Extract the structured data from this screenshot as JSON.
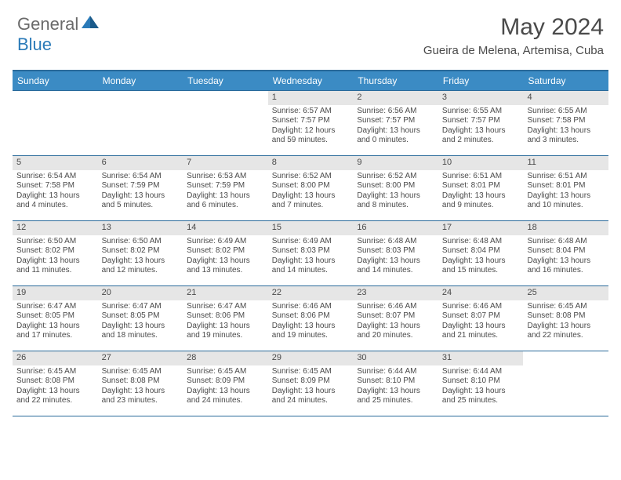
{
  "logo": {
    "general": "General",
    "blue": "Blue"
  },
  "title": "May 2024",
  "location": "Gueira de Melena, Artemisa, Cuba",
  "weekdays": [
    "Sunday",
    "Monday",
    "Tuesday",
    "Wednesday",
    "Thursday",
    "Friday",
    "Saturday"
  ],
  "colors": {
    "header_bar": "#3b8bc4",
    "header_border": "#2a6a9a",
    "daynum_bg": "#e6e6e6",
    "text": "#4a4a4a",
    "logo_gray": "#6a6a6a",
    "logo_blue": "#2a7ab8",
    "background": "#ffffff"
  },
  "weeks": [
    [
      {
        "n": "",
        "sr": "",
        "ss": "",
        "dl1": "",
        "dl2": ""
      },
      {
        "n": "",
        "sr": "",
        "ss": "",
        "dl1": "",
        "dl2": ""
      },
      {
        "n": "",
        "sr": "",
        "ss": "",
        "dl1": "",
        "dl2": ""
      },
      {
        "n": "1",
        "sr": "Sunrise: 6:57 AM",
        "ss": "Sunset: 7:57 PM",
        "dl1": "Daylight: 12 hours",
        "dl2": "and 59 minutes."
      },
      {
        "n": "2",
        "sr": "Sunrise: 6:56 AM",
        "ss": "Sunset: 7:57 PM",
        "dl1": "Daylight: 13 hours",
        "dl2": "and 0 minutes."
      },
      {
        "n": "3",
        "sr": "Sunrise: 6:55 AM",
        "ss": "Sunset: 7:57 PM",
        "dl1": "Daylight: 13 hours",
        "dl2": "and 2 minutes."
      },
      {
        "n": "4",
        "sr": "Sunrise: 6:55 AM",
        "ss": "Sunset: 7:58 PM",
        "dl1": "Daylight: 13 hours",
        "dl2": "and 3 minutes."
      }
    ],
    [
      {
        "n": "5",
        "sr": "Sunrise: 6:54 AM",
        "ss": "Sunset: 7:58 PM",
        "dl1": "Daylight: 13 hours",
        "dl2": "and 4 minutes."
      },
      {
        "n": "6",
        "sr": "Sunrise: 6:54 AM",
        "ss": "Sunset: 7:59 PM",
        "dl1": "Daylight: 13 hours",
        "dl2": "and 5 minutes."
      },
      {
        "n": "7",
        "sr": "Sunrise: 6:53 AM",
        "ss": "Sunset: 7:59 PM",
        "dl1": "Daylight: 13 hours",
        "dl2": "and 6 minutes."
      },
      {
        "n": "8",
        "sr": "Sunrise: 6:52 AM",
        "ss": "Sunset: 8:00 PM",
        "dl1": "Daylight: 13 hours",
        "dl2": "and 7 minutes."
      },
      {
        "n": "9",
        "sr": "Sunrise: 6:52 AM",
        "ss": "Sunset: 8:00 PM",
        "dl1": "Daylight: 13 hours",
        "dl2": "and 8 minutes."
      },
      {
        "n": "10",
        "sr": "Sunrise: 6:51 AM",
        "ss": "Sunset: 8:01 PM",
        "dl1": "Daylight: 13 hours",
        "dl2": "and 9 minutes."
      },
      {
        "n": "11",
        "sr": "Sunrise: 6:51 AM",
        "ss": "Sunset: 8:01 PM",
        "dl1": "Daylight: 13 hours",
        "dl2": "and 10 minutes."
      }
    ],
    [
      {
        "n": "12",
        "sr": "Sunrise: 6:50 AM",
        "ss": "Sunset: 8:02 PM",
        "dl1": "Daylight: 13 hours",
        "dl2": "and 11 minutes."
      },
      {
        "n": "13",
        "sr": "Sunrise: 6:50 AM",
        "ss": "Sunset: 8:02 PM",
        "dl1": "Daylight: 13 hours",
        "dl2": "and 12 minutes."
      },
      {
        "n": "14",
        "sr": "Sunrise: 6:49 AM",
        "ss": "Sunset: 8:02 PM",
        "dl1": "Daylight: 13 hours",
        "dl2": "and 13 minutes."
      },
      {
        "n": "15",
        "sr": "Sunrise: 6:49 AM",
        "ss": "Sunset: 8:03 PM",
        "dl1": "Daylight: 13 hours",
        "dl2": "and 14 minutes."
      },
      {
        "n": "16",
        "sr": "Sunrise: 6:48 AM",
        "ss": "Sunset: 8:03 PM",
        "dl1": "Daylight: 13 hours",
        "dl2": "and 14 minutes."
      },
      {
        "n": "17",
        "sr": "Sunrise: 6:48 AM",
        "ss": "Sunset: 8:04 PM",
        "dl1": "Daylight: 13 hours",
        "dl2": "and 15 minutes."
      },
      {
        "n": "18",
        "sr": "Sunrise: 6:48 AM",
        "ss": "Sunset: 8:04 PM",
        "dl1": "Daylight: 13 hours",
        "dl2": "and 16 minutes."
      }
    ],
    [
      {
        "n": "19",
        "sr": "Sunrise: 6:47 AM",
        "ss": "Sunset: 8:05 PM",
        "dl1": "Daylight: 13 hours",
        "dl2": "and 17 minutes."
      },
      {
        "n": "20",
        "sr": "Sunrise: 6:47 AM",
        "ss": "Sunset: 8:05 PM",
        "dl1": "Daylight: 13 hours",
        "dl2": "and 18 minutes."
      },
      {
        "n": "21",
        "sr": "Sunrise: 6:47 AM",
        "ss": "Sunset: 8:06 PM",
        "dl1": "Daylight: 13 hours",
        "dl2": "and 19 minutes."
      },
      {
        "n": "22",
        "sr": "Sunrise: 6:46 AM",
        "ss": "Sunset: 8:06 PM",
        "dl1": "Daylight: 13 hours",
        "dl2": "and 19 minutes."
      },
      {
        "n": "23",
        "sr": "Sunrise: 6:46 AM",
        "ss": "Sunset: 8:07 PM",
        "dl1": "Daylight: 13 hours",
        "dl2": "and 20 minutes."
      },
      {
        "n": "24",
        "sr": "Sunrise: 6:46 AM",
        "ss": "Sunset: 8:07 PM",
        "dl1": "Daylight: 13 hours",
        "dl2": "and 21 minutes."
      },
      {
        "n": "25",
        "sr": "Sunrise: 6:45 AM",
        "ss": "Sunset: 8:08 PM",
        "dl1": "Daylight: 13 hours",
        "dl2": "and 22 minutes."
      }
    ],
    [
      {
        "n": "26",
        "sr": "Sunrise: 6:45 AM",
        "ss": "Sunset: 8:08 PM",
        "dl1": "Daylight: 13 hours",
        "dl2": "and 22 minutes."
      },
      {
        "n": "27",
        "sr": "Sunrise: 6:45 AM",
        "ss": "Sunset: 8:08 PM",
        "dl1": "Daylight: 13 hours",
        "dl2": "and 23 minutes."
      },
      {
        "n": "28",
        "sr": "Sunrise: 6:45 AM",
        "ss": "Sunset: 8:09 PM",
        "dl1": "Daylight: 13 hours",
        "dl2": "and 24 minutes."
      },
      {
        "n": "29",
        "sr": "Sunrise: 6:45 AM",
        "ss": "Sunset: 8:09 PM",
        "dl1": "Daylight: 13 hours",
        "dl2": "and 24 minutes."
      },
      {
        "n": "30",
        "sr": "Sunrise: 6:44 AM",
        "ss": "Sunset: 8:10 PM",
        "dl1": "Daylight: 13 hours",
        "dl2": "and 25 minutes."
      },
      {
        "n": "31",
        "sr": "Sunrise: 6:44 AM",
        "ss": "Sunset: 8:10 PM",
        "dl1": "Daylight: 13 hours",
        "dl2": "and 25 minutes."
      },
      {
        "n": "",
        "sr": "",
        "ss": "",
        "dl1": "",
        "dl2": ""
      }
    ]
  ]
}
